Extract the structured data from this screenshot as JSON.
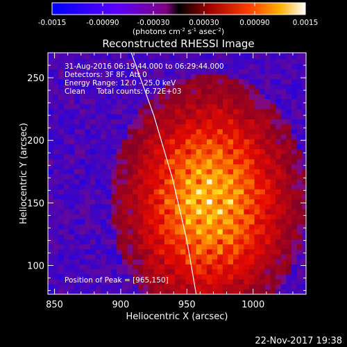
{
  "chart_data": {
    "type": "heatmap",
    "title": "Reconstructed RHESSI Image",
    "xlabel": "Heliocentric X (arcsec)",
    "ylabel": "Heliocentric Y (arcsec)",
    "xlim": [
      845,
      1040
    ],
    "ylim": [
      77,
      270
    ],
    "x_ticks": [
      "850",
      "900",
      "950",
      "1000"
    ],
    "x_tick_values": [
      850,
      900,
      950,
      1000
    ],
    "y_ticks": [
      "100",
      "150",
      "200",
      "250"
    ],
    "y_tick_values": [
      100,
      150,
      200,
      250
    ],
    "colorbar": {
      "label": "(photons cm",
      "label_sup1": "-2",
      "label_mid": " s",
      "label_sup2": "-1",
      "label_mid2": " asec",
      "label_sup3": "-2",
      "label_end": ")",
      "tick_labels": [
        "-0.0015",
        "-0.00090",
        "-0.00030",
        "0.00030",
        "0.00090",
        "0.0015"
      ],
      "range": [
        -0.0015,
        0.0015
      ]
    },
    "annotations": [
      "31-Aug-2016 06:19:44.000 to 06:29:44.000",
      "Detectors: 3F 8F, Att 0",
      "Energy Range: 12.0 - 25.0 keV",
      "Clean     Total counts: 6.72E+03"
    ],
    "peak_label": "Position of Peak = [965,150]",
    "peak": [
      965,
      150
    ],
    "source_sigma": [
      38,
      52
    ],
    "limb_curve": [
      [
        908,
        270
      ],
      [
        925,
        220
      ],
      [
        939,
        170
      ],
      [
        950,
        120
      ],
      [
        957,
        77
      ]
    ]
  },
  "footer": {
    "timestamp": "22-Nov-2017 19:38"
  }
}
